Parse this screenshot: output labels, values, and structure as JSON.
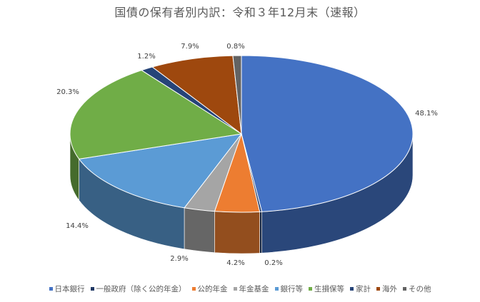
{
  "chart_data": {
    "type": "pie",
    "title": "国債の保有者別内訳：令和３年12月末（速報）",
    "slices": [
      {
        "label": "日本銀行",
        "value": 48.1,
        "value_label": "48.1%",
        "color": "#4472C4"
      },
      {
        "label": "一般政府（除く公的年金）",
        "value": 0.2,
        "value_label": "0.2%",
        "color": "#203864"
      },
      {
        "label": "公的年金",
        "value": 4.2,
        "value_label": "4.2%",
        "color": "#ED7D31"
      },
      {
        "label": "年金基金",
        "value": 2.9,
        "value_label": "2.9%",
        "color": "#A5A5A5"
      },
      {
        "label": "銀行等",
        "value": 14.4,
        "value_label": "14.4%",
        "color": "#5B9BD5"
      },
      {
        "label": "生損保等",
        "value": 20.3,
        "value_label": "20.3%",
        "color": "#70AD47"
      },
      {
        "label": "家計",
        "value": 1.2,
        "value_label": "1.2%",
        "color": "#264478"
      },
      {
        "label": "海外",
        "value": 7.9,
        "value_label": "7.9%",
        "color": "#9E480E"
      },
      {
        "label": "その他",
        "value": 0.8,
        "value_label": "0.8%",
        "color": "#636363"
      }
    ],
    "legend_position": "bottom"
  }
}
